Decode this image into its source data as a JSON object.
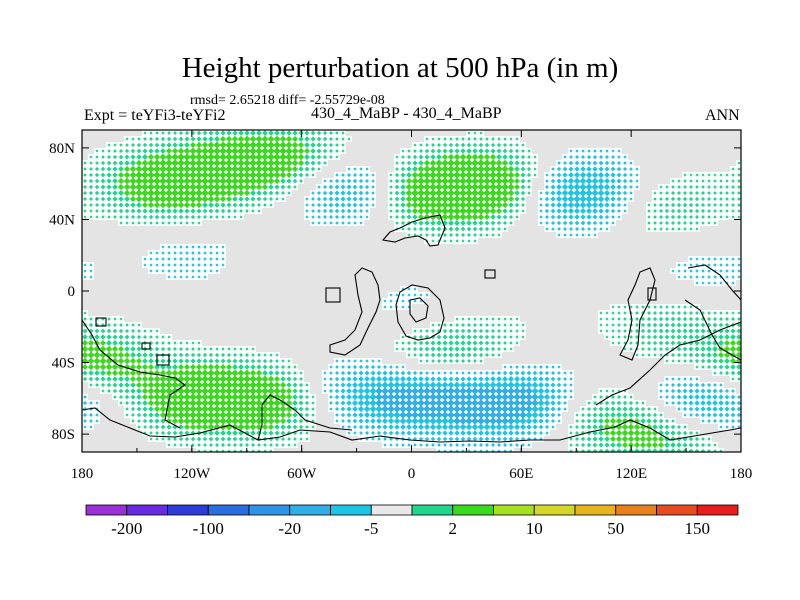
{
  "chart_data": {
    "type": "heatmap",
    "title": "Height perturbation at 500 hPa (in m)",
    "subtitle": "rmsd= 2.65218 diff= -2.55729e-08",
    "left_label": "Expt = teYFi3-teYFi2",
    "center_label": "430_4_MaBP - 430_4_MaBP",
    "right_label": "ANN",
    "variable": "500 hPa height perturbation (m)",
    "x_range_deg": [
      -180,
      180
    ],
    "y_range_deg": [
      -90,
      90
    ],
    "x_ticks": [
      {
        "value": -180,
        "label": "180"
      },
      {
        "value": -120,
        "label": "120W"
      },
      {
        "value": -60,
        "label": "60W"
      },
      {
        "value": 0,
        "label": "0"
      },
      {
        "value": 60,
        "label": "60E"
      },
      {
        "value": 120,
        "label": "120E"
      },
      {
        "value": 180,
        "label": "180"
      }
    ],
    "y_ticks": [
      {
        "value": 80,
        "label": "80N"
      },
      {
        "value": 40,
        "label": "40N"
      },
      {
        "value": 0,
        "label": "0"
      },
      {
        "value": -40,
        "label": "40S"
      },
      {
        "value": -80,
        "label": "80S"
      }
    ],
    "colorbar": {
      "colors": [
        "#9b30d8",
        "#6a2be0",
        "#2f3bd8",
        "#2a6fe0",
        "#2f93e6",
        "#31aee6",
        "#1ec4e6",
        "#e9e9e9",
        "#1fd68c",
        "#3ad91e",
        "#a6e01e",
        "#d4d72a",
        "#e8b41e",
        "#e8801e",
        "#e84c1e",
        "#e81e1e"
      ],
      "labels": [
        {
          "boundary": 1,
          "text": "-200"
        },
        {
          "boundary": 3,
          "text": "-100"
        },
        {
          "boundary": 5,
          "text": "-20"
        },
        {
          "boundary": 7,
          "text": "-5"
        },
        {
          "boundary": 9,
          "text": "2"
        },
        {
          "boundary": 11,
          "text": "10"
        },
        {
          "boundary": 13,
          "text": "50"
        },
        {
          "boundary": 15,
          "text": "150"
        }
      ]
    },
    "anomaly_centers": [
      {
        "lon": -135,
        "lat": 60,
        "value": 8
      },
      {
        "lon": -95,
        "lat": 70,
        "value": 6
      },
      {
        "lon": -65,
        "lat": 75,
        "value": 5
      },
      {
        "lon": -30,
        "lat": 57,
        "value": -7
      },
      {
        "lon": 10,
        "lat": 55,
        "value": 9
      },
      {
        "lon": 45,
        "lat": 60,
        "value": 8
      },
      {
        "lon": 92,
        "lat": 55,
        "value": -9
      },
      {
        "lon": 135,
        "lat": 48,
        "value": 4
      },
      {
        "lon": -120,
        "lat": 20,
        "value": -2
      },
      {
        "lon": -60,
        "lat": 10,
        "value": 1
      },
      {
        "lon": 0,
        "lat": -10,
        "value": -2
      },
      {
        "lon": 70,
        "lat": -5,
        "value": 1
      },
      {
        "lon": -175,
        "lat": -40,
        "value": 7
      },
      {
        "lon": -115,
        "lat": -60,
        "value": 9
      },
      {
        "lon": -75,
        "lat": -62,
        "value": 7
      },
      {
        "lon": -35,
        "lat": -58,
        "value": -5
      },
      {
        "lon": 10,
        "lat": -60,
        "value": -8
      },
      {
        "lon": 60,
        "lat": -63,
        "value": -9
      },
      {
        "lon": 20,
        "lat": -35,
        "value": 6
      },
      {
        "lon": 100,
        "lat": -70,
        "value": 5
      },
      {
        "lon": 140,
        "lat": -80,
        "value": 6
      },
      {
        "lon": 160,
        "lat": -62,
        "value": -8
      },
      {
        "lon": 140,
        "lat": -20,
        "value": 3
      },
      {
        "lon": 160,
        "lat": 10,
        "value": -2
      }
    ]
  }
}
